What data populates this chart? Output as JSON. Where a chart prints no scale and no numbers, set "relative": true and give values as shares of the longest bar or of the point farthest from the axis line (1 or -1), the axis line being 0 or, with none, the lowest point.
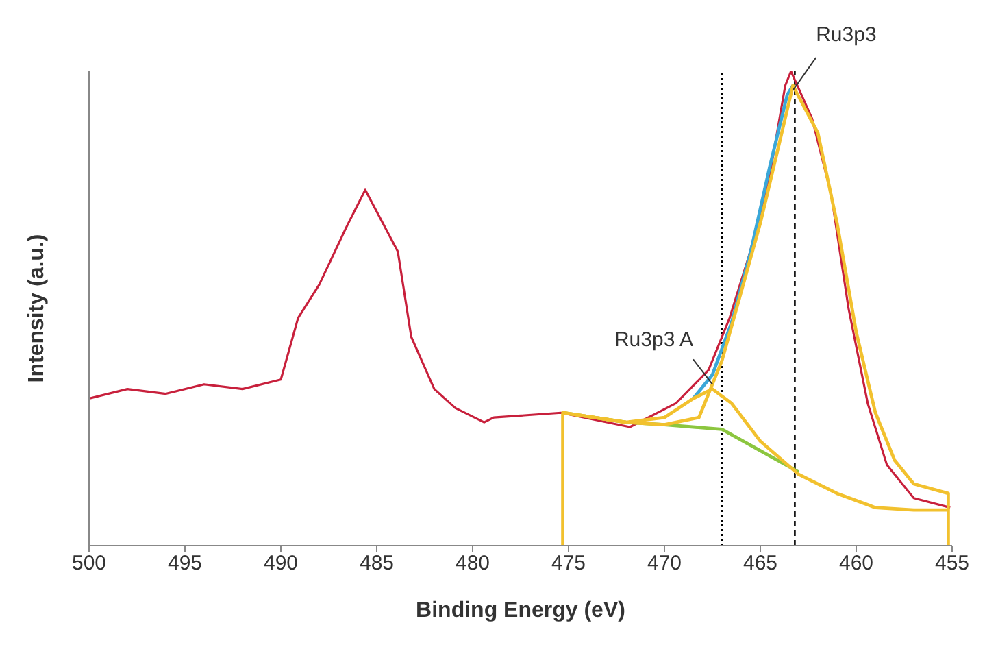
{
  "chart_data": {
    "type": "line",
    "relative": true,
    "xlabel": "Binding Energy (eV)",
    "ylabel": "Intensity (a.u.)",
    "xlim": [
      500,
      455
    ],
    "xticks": [
      500,
      495,
      490,
      485,
      480,
      475,
      470,
      465,
      460,
      455
    ],
    "tick_labels": "x",
    "marker": "none",
    "series": [
      {
        "color": "#c8203c",
        "x": [
          500,
          498,
          496,
          494,
          492,
          490,
          489.1,
          488,
          486.6,
          485.6,
          483.9,
          483.2,
          482,
          480.9,
          479.4,
          478.9,
          475.4,
          471.8,
          469.4,
          467.7,
          466.6,
          465.6,
          464.6,
          463.7,
          463.4,
          462.3,
          461.3,
          460.4,
          459.4,
          458.4,
          457,
          455.1
        ],
        "values": [
          0.31,
          0.33,
          0.32,
          0.34,
          0.33,
          0.35,
          0.48,
          0.55,
          0.67,
          0.75,
          0.62,
          0.44,
          0.33,
          0.29,
          0.26,
          0.27,
          0.28,
          0.25,
          0.3,
          0.37,
          0.48,
          0.61,
          0.76,
          0.97,
          1,
          0.9,
          0.74,
          0.5,
          0.3,
          0.17,
          0.1,
          0.08
        ]
      },
      {
        "color": "#3aa7d8",
        "x": [
          468.5,
          467.5,
          466.5,
          465.5,
          464.5,
          463.6,
          463.3
        ],
        "values": [
          0.31,
          0.36,
          0.47,
          0.62,
          0.8,
          0.95,
          0.97
        ]
      },
      {
        "color": "#8cc63f",
        "x": [
          475.3,
          472,
          470,
          467,
          465,
          463
        ],
        "values": [
          0.28,
          0.26,
          0.255,
          0.245,
          0.2,
          0.155
        ]
      },
      {
        "color": "#f2c12e",
        "x": [
          475.3,
          475.3,
          472,
          470,
          468.2,
          467,
          466.1,
          465,
          464,
          463.3,
          462,
          461,
          460,
          459,
          458,
          457,
          455.2,
          455.2
        ],
        "values": [
          0,
          0.28,
          0.26,
          0.255,
          0.27,
          0.39,
          0.52,
          0.68,
          0.85,
          0.97,
          0.87,
          0.68,
          0.45,
          0.28,
          0.18,
          0.13,
          0.11,
          0
        ]
      },
      {
        "color": "#f2c12e",
        "x": [
          475.3,
          472,
          470,
          468.5,
          467.5,
          466.5,
          465,
          463,
          461,
          459,
          457,
          455.2
        ],
        "values": [
          0.28,
          0.26,
          0.27,
          0.31,
          0.33,
          0.3,
          0.22,
          0.15,
          0.11,
          0.08,
          0.075,
          0.075
        ]
      }
    ],
    "ref_lines": [
      {
        "axis": "x",
        "value": 467,
        "color": "#000000",
        "line_style": "dotted"
      },
      {
        "axis": "x",
        "value": 463.2,
        "color": "#000000",
        "line_style": "dashed"
      }
    ],
    "annotations": [
      {
        "text": "Ru3p3",
        "x": 463.3,
        "y": 0.96
      },
      {
        "text": "Ru3p3 A",
        "x": 467.5,
        "y": 0.34
      }
    ]
  }
}
